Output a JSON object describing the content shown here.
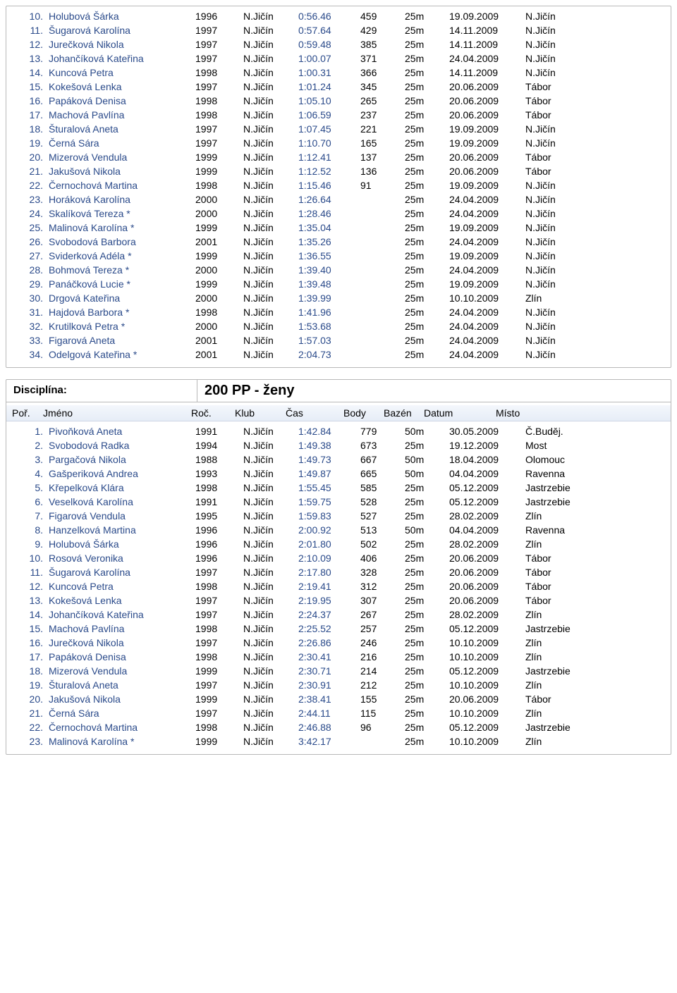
{
  "colors": {
    "link_blue": "#2a4a8a",
    "border_gray": "#b8b8b8",
    "header_bg_top": "#f4f7fc",
    "header_bg_bottom": "#e6edf7",
    "text_black": "#000000",
    "page_bg": "#ffffff"
  },
  "table1": {
    "rows": [
      {
        "rank": "10.",
        "name": "Holubová Šárka",
        "year": "1996",
        "club": "N.Jičín",
        "time": "0:56.46",
        "pts": "459",
        "pool": "25m",
        "date": "19.09.2009",
        "loc": "N.Jičín"
      },
      {
        "rank": "11.",
        "name": "Šugarová Karolína",
        "year": "1997",
        "club": "N.Jičín",
        "time": "0:57.64",
        "pts": "429",
        "pool": "25m",
        "date": "14.11.2009",
        "loc": "N.Jičín"
      },
      {
        "rank": "12.",
        "name": "Jurečková Nikola",
        "year": "1997",
        "club": "N.Jičín",
        "time": "0:59.48",
        "pts": "385",
        "pool": "25m",
        "date": "14.11.2009",
        "loc": "N.Jičín"
      },
      {
        "rank": "13.",
        "name": "Johančíková Kateřina",
        "year": "1997",
        "club": "N.Jičín",
        "time": "1:00.07",
        "pts": "371",
        "pool": "25m",
        "date": "24.04.2009",
        "loc": "N.Jičín"
      },
      {
        "rank": "14.",
        "name": "Kuncová Petra",
        "year": "1998",
        "club": "N.Jičín",
        "time": "1:00.31",
        "pts": "366",
        "pool": "25m",
        "date": "14.11.2009",
        "loc": "N.Jičín"
      },
      {
        "rank": "15.",
        "name": "Kokešová Lenka",
        "year": "1997",
        "club": "N.Jičín",
        "time": "1:01.24",
        "pts": "345",
        "pool": "25m",
        "date": "20.06.2009",
        "loc": "Tábor"
      },
      {
        "rank": "16.",
        "name": "Papáková Denisa",
        "year": "1998",
        "club": "N.Jičín",
        "time": "1:05.10",
        "pts": "265",
        "pool": "25m",
        "date": "20.06.2009",
        "loc": "Tábor"
      },
      {
        "rank": "17.",
        "name": "Machová Pavlína",
        "year": "1998",
        "club": "N.Jičín",
        "time": "1:06.59",
        "pts": "237",
        "pool": "25m",
        "date": "20.06.2009",
        "loc": "Tábor"
      },
      {
        "rank": "18.",
        "name": "Šturalová Aneta",
        "year": "1997",
        "club": "N.Jičín",
        "time": "1:07.45",
        "pts": "221",
        "pool": "25m",
        "date": "19.09.2009",
        "loc": "N.Jičín"
      },
      {
        "rank": "19.",
        "name": "Černá Sára",
        "year": "1997",
        "club": "N.Jičín",
        "time": "1:10.70",
        "pts": "165",
        "pool": "25m",
        "date": "19.09.2009",
        "loc": "N.Jičín"
      },
      {
        "rank": "20.",
        "name": "Mizerová Vendula",
        "year": "1999",
        "club": "N.Jičín",
        "time": "1:12.41",
        "pts": "137",
        "pool": "25m",
        "date": "20.06.2009",
        "loc": "Tábor"
      },
      {
        "rank": "21.",
        "name": "Jakušová Nikola",
        "year": "1999",
        "club": "N.Jičín",
        "time": "1:12.52",
        "pts": "136",
        "pool": "25m",
        "date": "20.06.2009",
        "loc": "Tábor"
      },
      {
        "rank": "22.",
        "name": "Černochová Martina",
        "year": "1998",
        "club": "N.Jičín",
        "time": "1:15.46",
        "pts": "91",
        "pool": "25m",
        "date": "19.09.2009",
        "loc": "N.Jičín"
      },
      {
        "rank": "23.",
        "name": "Horáková Karolína",
        "year": "2000",
        "club": "N.Jičín",
        "time": "1:26.64",
        "pts": "",
        "pool": "25m",
        "date": "24.04.2009",
        "loc": "N.Jičín"
      },
      {
        "rank": "24.",
        "name": "Skalíková Tereza *",
        "year": "2000",
        "club": "N.Jičín",
        "time": "1:28.46",
        "pts": "",
        "pool": "25m",
        "date": "24.04.2009",
        "loc": "N.Jičín"
      },
      {
        "rank": "25.",
        "name": "Malinová Karolína *",
        "year": "1999",
        "club": "N.Jičín",
        "time": "1:35.04",
        "pts": "",
        "pool": "25m",
        "date": "19.09.2009",
        "loc": "N.Jičín"
      },
      {
        "rank": "26.",
        "name": "Svobodová Barbora",
        "year": "2001",
        "club": "N.Jičín",
        "time": "1:35.26",
        "pts": "",
        "pool": "25m",
        "date": "24.04.2009",
        "loc": "N.Jičín"
      },
      {
        "rank": "27.",
        "name": "Sviderková Adéla *",
        "year": "1999",
        "club": "N.Jičín",
        "time": "1:36.55",
        "pts": "",
        "pool": "25m",
        "date": "19.09.2009",
        "loc": "N.Jičín"
      },
      {
        "rank": "28.",
        "name": "Bohmová Tereza *",
        "year": "2000",
        "club": "N.Jičín",
        "time": "1:39.40",
        "pts": "",
        "pool": "25m",
        "date": "24.04.2009",
        "loc": "N.Jičín"
      },
      {
        "rank": "29.",
        "name": "Panáčková Lucie *",
        "year": "1999",
        "club": "N.Jičín",
        "time": "1:39.48",
        "pts": "",
        "pool": "25m",
        "date": "19.09.2009",
        "loc": "N.Jičín"
      },
      {
        "rank": "30.",
        "name": "Drgová Kateřina",
        "year": "2000",
        "club": "N.Jičín",
        "time": "1:39.99",
        "pts": "",
        "pool": "25m",
        "date": "10.10.2009",
        "loc": "Zlín"
      },
      {
        "rank": "31.",
        "name": "Hajdová Barbora *",
        "year": "1998",
        "club": "N.Jičín",
        "time": "1:41.96",
        "pts": "",
        "pool": "25m",
        "date": "24.04.2009",
        "loc": "N.Jičín"
      },
      {
        "rank": "32.",
        "name": "Krutilková Petra *",
        "year": "2000",
        "club": "N.Jičín",
        "time": "1:53.68",
        "pts": "",
        "pool": "25m",
        "date": "24.04.2009",
        "loc": "N.Jičín"
      },
      {
        "rank": "33.",
        "name": "Figarová Aneta",
        "year": "2001",
        "club": "N.Jičín",
        "time": "1:57.03",
        "pts": "",
        "pool": "25m",
        "date": "24.04.2009",
        "loc": "N.Jičín"
      },
      {
        "rank": "34.",
        "name": "Odelgová Kateřina *",
        "year": "2001",
        "club": "N.Jičín",
        "time": "2:04.73",
        "pts": "",
        "pool": "25m",
        "date": "24.04.2009",
        "loc": "N.Jičín"
      }
    ]
  },
  "table2": {
    "discipline_label": "Disciplína:",
    "discipline_value": "200 PP - ženy",
    "headers": {
      "rank": "Poř.",
      "name": "Jméno",
      "year": "Roč.",
      "club": "Klub",
      "time": "Čas",
      "pts": "Body",
      "pool": "Bazén",
      "date": "Datum",
      "loc": "Místo"
    },
    "rows": [
      {
        "rank": "1.",
        "name": "Pivoňková Aneta",
        "year": "1991",
        "club": "N.Jičín",
        "time": "1:42.84",
        "pts": "779",
        "pool": "50m",
        "date": "30.05.2009",
        "loc": "Č.Buděj."
      },
      {
        "rank": "2.",
        "name": "Svobodová Radka",
        "year": "1994",
        "club": "N.Jičín",
        "time": "1:49.38",
        "pts": "673",
        "pool": "25m",
        "date": "19.12.2009",
        "loc": "Most"
      },
      {
        "rank": "3.",
        "name": "Pargačová Nikola",
        "year": "1988",
        "club": "N.Jičín",
        "time": "1:49.73",
        "pts": "667",
        "pool": "50m",
        "date": "18.04.2009",
        "loc": "Olomouc"
      },
      {
        "rank": "4.",
        "name": "Gašperiková Andrea",
        "year": "1993",
        "club": "N.Jičín",
        "time": "1:49.87",
        "pts": "665",
        "pool": "50m",
        "date": "04.04.2009",
        "loc": "Ravenna"
      },
      {
        "rank": "5.",
        "name": "Křepelková Klára",
        "year": "1998",
        "club": "N.Jičín",
        "time": "1:55.45",
        "pts": "585",
        "pool": "25m",
        "date": "05.12.2009",
        "loc": "Jastrzebie"
      },
      {
        "rank": "6.",
        "name": "Veselková Karolína",
        "year": "1991",
        "club": "N.Jičín",
        "time": "1:59.75",
        "pts": "528",
        "pool": "25m",
        "date": "05.12.2009",
        "loc": "Jastrzebie"
      },
      {
        "rank": "7.",
        "name": "Figarová Vendula",
        "year": "1995",
        "club": "N.Jičín",
        "time": "1:59.83",
        "pts": "527",
        "pool": "25m",
        "date": "28.02.2009",
        "loc": "Zlín"
      },
      {
        "rank": "8.",
        "name": "Hanzelková Martina",
        "year": "1996",
        "club": "N.Jičín",
        "time": "2:00.92",
        "pts": "513",
        "pool": "50m",
        "date": "04.04.2009",
        "loc": "Ravenna"
      },
      {
        "rank": "9.",
        "name": "Holubová Šárka",
        "year": "1996",
        "club": "N.Jičín",
        "time": "2:01.80",
        "pts": "502",
        "pool": "25m",
        "date": "28.02.2009",
        "loc": "Zlín"
      },
      {
        "rank": "10.",
        "name": "Rosová Veronika",
        "year": "1996",
        "club": "N.Jičín",
        "time": "2:10.09",
        "pts": "406",
        "pool": "25m",
        "date": "20.06.2009",
        "loc": "Tábor"
      },
      {
        "rank": "11.",
        "name": "Šugarová Karolína",
        "year": "1997",
        "club": "N.Jičín",
        "time": "2:17.80",
        "pts": "328",
        "pool": "25m",
        "date": "20.06.2009",
        "loc": "Tábor"
      },
      {
        "rank": "12.",
        "name": "Kuncová Petra",
        "year": "1998",
        "club": "N.Jičín",
        "time": "2:19.41",
        "pts": "312",
        "pool": "25m",
        "date": "20.06.2009",
        "loc": "Tábor"
      },
      {
        "rank": "13.",
        "name": "Kokešová Lenka",
        "year": "1997",
        "club": "N.Jičín",
        "time": "2:19.95",
        "pts": "307",
        "pool": "25m",
        "date": "20.06.2009",
        "loc": "Tábor"
      },
      {
        "rank": "14.",
        "name": "Johančíková Kateřina",
        "year": "1997",
        "club": "N.Jičín",
        "time": "2:24.37",
        "pts": "267",
        "pool": "25m",
        "date": "28.02.2009",
        "loc": "Zlín"
      },
      {
        "rank": "15.",
        "name": "Machová Pavlína",
        "year": "1998",
        "club": "N.Jičín",
        "time": "2:25.52",
        "pts": "257",
        "pool": "25m",
        "date": "05.12.2009",
        "loc": "Jastrzebie"
      },
      {
        "rank": "16.",
        "name": "Jurečková Nikola",
        "year": "1997",
        "club": "N.Jičín",
        "time": "2:26.86",
        "pts": "246",
        "pool": "25m",
        "date": "10.10.2009",
        "loc": "Zlín"
      },
      {
        "rank": "17.",
        "name": "Papáková Denisa",
        "year": "1998",
        "club": "N.Jičín",
        "time": "2:30.41",
        "pts": "216",
        "pool": "25m",
        "date": "10.10.2009",
        "loc": "Zlín"
      },
      {
        "rank": "18.",
        "name": "Mizerová Vendula",
        "year": "1999",
        "club": "N.Jičín",
        "time": "2:30.71",
        "pts": "214",
        "pool": "25m",
        "date": "05.12.2009",
        "loc": "Jastrzebie"
      },
      {
        "rank": "19.",
        "name": "Šturalová Aneta",
        "year": "1997",
        "club": "N.Jičín",
        "time": "2:30.91",
        "pts": "212",
        "pool": "25m",
        "date": "10.10.2009",
        "loc": "Zlín"
      },
      {
        "rank": "20.",
        "name": "Jakušová Nikola",
        "year": "1999",
        "club": "N.Jičín",
        "time": "2:38.41",
        "pts": "155",
        "pool": "25m",
        "date": "20.06.2009",
        "loc": "Tábor"
      },
      {
        "rank": "21.",
        "name": "Černá Sára",
        "year": "1997",
        "club": "N.Jičín",
        "time": "2:44.11",
        "pts": "115",
        "pool": "25m",
        "date": "10.10.2009",
        "loc": "Zlín"
      },
      {
        "rank": "22.",
        "name": "Černochová Martina",
        "year": "1998",
        "club": "N.Jičín",
        "time": "2:46.88",
        "pts": "96",
        "pool": "25m",
        "date": "05.12.2009",
        "loc": "Jastrzebie"
      },
      {
        "rank": "23.",
        "name": "Malinová Karolína *",
        "year": "1999",
        "club": "N.Jičín",
        "time": "3:42.17",
        "pts": "",
        "pool": "25m",
        "date": "10.10.2009",
        "loc": "Zlín"
      }
    ]
  }
}
